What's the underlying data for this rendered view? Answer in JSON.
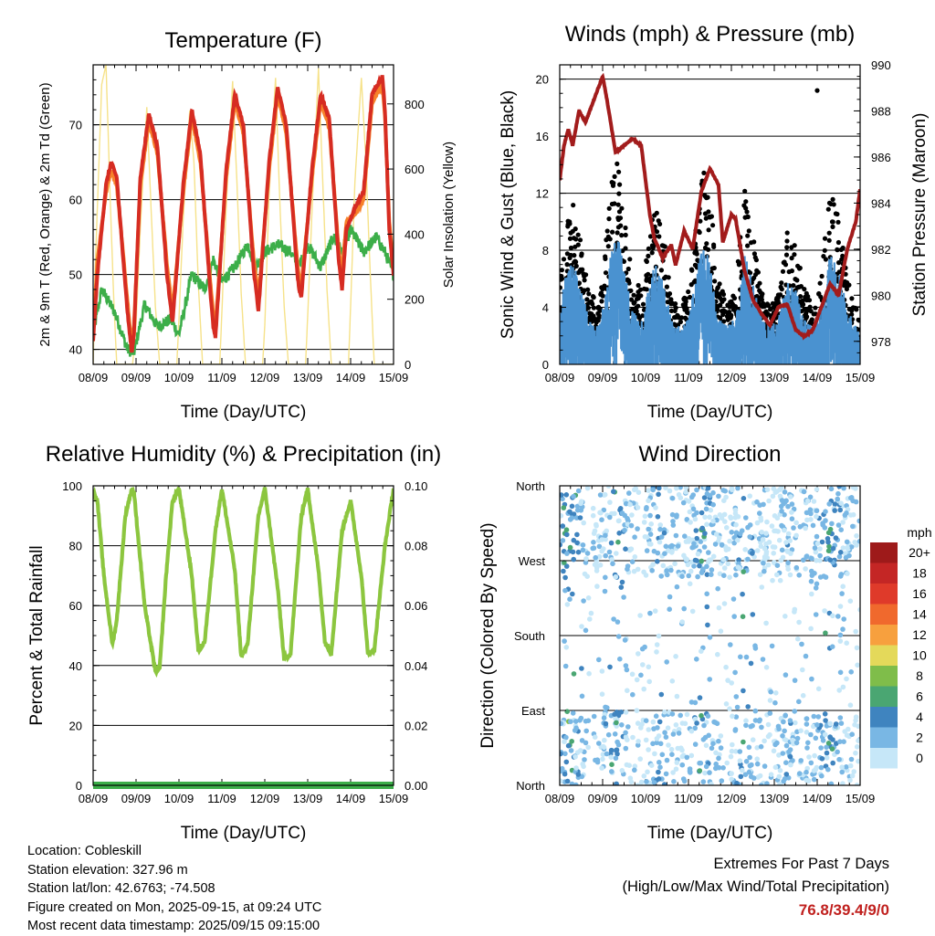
{
  "chart_data": [
    {
      "type": "line",
      "title": "Temperature (F)",
      "xlabel": "Time (Day/UTC)",
      "ylabel": "2m & 9m T (Red, Orange) & 2m Td (Green)",
      "y2label": "Solar Insolation (Yellow)",
      "x_ticks": [
        "08/09",
        "09/09",
        "10/09",
        "11/09",
        "12/09",
        "13/09",
        "14/09",
        "15/09"
      ],
      "ylim": [
        38,
        78
      ],
      "y_ticks": [
        40,
        50,
        60,
        70
      ],
      "y2lim": [
        0,
        920
      ],
      "y2_ticks": [
        0,
        200,
        400,
        600,
        800
      ],
      "grid_y": [
        40,
        50,
        60,
        70
      ],
      "series": [
        {
          "name": "2m T",
          "color": "#d62c22",
          "x": [
            0,
            0.1,
            0.3,
            0.42,
            0.55,
            0.8,
            0.9,
            0.95,
            1.1,
            1.3,
            1.5,
            1.72,
            1.8,
            1.85,
            2.1,
            2.3,
            2.5,
            2.74,
            2.8,
            2.85,
            3.1,
            3.3,
            3.5,
            3.75,
            3.8,
            3.85,
            4.1,
            4.3,
            4.5,
            4.76,
            4.8,
            4.85,
            5.1,
            5.3,
            5.5,
            5.72,
            5.8,
            5.9,
            6.1,
            6.3,
            6.5,
            6.74,
            6.8,
            6.9,
            7.0
          ],
          "values": [
            41,
            50,
            62,
            65,
            63,
            45,
            39.5,
            42,
            63,
            71.5,
            67,
            50,
            46,
            43.5,
            62,
            72,
            66,
            47,
            43,
            41.5,
            64,
            74,
            70,
            50,
            48,
            45,
            65,
            75,
            70,
            50,
            48,
            47,
            64,
            74,
            71,
            52,
            48,
            56,
            59,
            61,
            74,
            76.5,
            72,
            56,
            50
          ]
        },
        {
          "name": "9m T",
          "color": "#f7812a",
          "x": [
            0,
            0.1,
            0.3,
            0.42,
            0.55,
            0.8,
            0.9,
            0.95,
            1.1,
            1.3,
            1.5,
            1.72,
            1.8,
            1.85,
            2.1,
            2.3,
            2.5,
            2.74,
            2.8,
            2.85,
            3.1,
            3.3,
            3.5,
            3.75,
            3.8,
            3.85,
            4.1,
            4.3,
            4.5,
            4.76,
            4.8,
            4.85,
            5.1,
            5.3,
            5.5,
            5.72,
            5.8,
            5.9,
            6.1,
            6.3,
            6.5,
            6.74,
            6.8,
            6.9,
            7.0
          ],
          "values": [
            42,
            52,
            61,
            64,
            62,
            46.5,
            40.5,
            43,
            62,
            70.5,
            66,
            51.5,
            47.5,
            45,
            61,
            71,
            65,
            48.5,
            44.5,
            43,
            63,
            73,
            69,
            51.5,
            49.5,
            46.5,
            64,
            74,
            69,
            51.5,
            49.5,
            48.5,
            63,
            73,
            70,
            53.5,
            50,
            57,
            58,
            60,
            73,
            75.5,
            71,
            57,
            51
          ]
        },
        {
          "name": "2m Td",
          "color": "#3cae49",
          "x": [
            0,
            0.2,
            0.5,
            0.8,
            0.95,
            1.2,
            1.5,
            1.8,
            2.0,
            2.3,
            2.6,
            2.8,
            3.0,
            3.3,
            3.6,
            3.8,
            4.0,
            4.3,
            4.6,
            4.8,
            5.0,
            5.3,
            5.6,
            5.8,
            6.0,
            6.3,
            6.6,
            6.8,
            7.0
          ],
          "values": [
            42,
            48,
            45,
            40,
            39.5,
            46,
            43,
            44,
            42,
            50,
            48,
            52,
            49,
            51,
            54,
            51,
            53,
            54,
            53,
            51,
            54,
            51,
            55,
            53,
            56,
            53,
            55,
            53,
            50
          ]
        },
        {
          "name": "Solar Insolation",
          "axis": "y2",
          "color": "#f6e28a",
          "x": [
            0,
            0.05,
            0.2,
            0.3,
            0.4,
            0.48,
            0.55,
            0.92,
            1.0,
            1.1,
            1.25,
            1.35,
            1.45,
            1.55,
            1.95,
            2.0,
            2.1,
            2.25,
            2.35,
            2.45,
            2.55,
            2.95,
            3.0,
            3.1,
            3.25,
            3.35,
            3.45,
            3.55,
            3.95,
            4.0,
            4.1,
            4.25,
            4.35,
            4.45,
            4.55,
            4.95,
            5.0,
            5.1,
            5.25,
            5.35,
            5.45,
            5.55,
            5.95,
            6.0,
            6.1,
            6.25,
            6.35,
            6.45,
            6.55,
            7.0
          ],
          "values": [
            0,
            300,
            860,
            920,
            500,
            200,
            0,
            0,
            120,
            420,
            790,
            480,
            180,
            0,
            0,
            140,
            450,
            780,
            620,
            250,
            0,
            0,
            160,
            480,
            870,
            560,
            220,
            0,
            0,
            120,
            520,
            880,
            500,
            180,
            0,
            0,
            150,
            470,
            910,
            560,
            230,
            0,
            0,
            180,
            560,
            880,
            640,
            300,
            0,
            0
          ]
        }
      ]
    },
    {
      "type": "scatter",
      "title": "Winds (mph) & Pressure (mb)",
      "xlabel": "Time (Day/UTC)",
      "ylabel": "Sonic Wind & Gust (Blue, Black)",
      "y2label": "Station Pressure (Maroon)",
      "x_ticks": [
        "08/09",
        "09/09",
        "10/09",
        "11/09",
        "12/09",
        "13/09",
        "14/09",
        "15/09"
      ],
      "ylim": [
        0,
        21
      ],
      "y_ticks": [
        0,
        4,
        8,
        12,
        16,
        20
      ],
      "y2lim": [
        977,
        990
      ],
      "y2_ticks": [
        978,
        980,
        982,
        984,
        986,
        988,
        990
      ],
      "grid_y": [
        4,
        8,
        12,
        16,
        20
      ],
      "series": [
        {
          "name": "Sonic Wind",
          "color": "#4a92d0",
          "envelope": "sustained"
        },
        {
          "name": "Gust",
          "color": "#000000",
          "envelope": "gust"
        },
        {
          "name": "Station Pressure",
          "axis": "y2",
          "color": "#a21c1c",
          "x": [
            0,
            0.1,
            0.2,
            0.3,
            0.45,
            0.6,
            0.8,
            1.0,
            1.1,
            1.3,
            1.5,
            1.7,
            1.9,
            2.1,
            2.2,
            2.4,
            2.6,
            2.7,
            2.9,
            3.1,
            3.3,
            3.5,
            3.7,
            3.8,
            4.0,
            4.1,
            4.3,
            4.5,
            4.7,
            4.9,
            5.1,
            5.3,
            5.5,
            5.7,
            5.9,
            6.1,
            6.3,
            6.5,
            6.7,
            6.9,
            7.0
          ],
          "values": [
            985,
            986.5,
            987.2,
            986.5,
            988,
            987.5,
            988.5,
            989.5,
            988.5,
            986.2,
            986.5,
            986.8,
            986.5,
            983.5,
            982.5,
            981.6,
            982.2,
            981.3,
            982.8,
            982,
            984.5,
            985.5,
            984.8,
            982.3,
            983.5,
            983.3,
            981.1,
            979.8,
            979.2,
            978.7,
            979.5,
            979.6,
            978.5,
            978.2,
            978.5,
            979.5,
            980.5,
            980,
            982,
            983.2,
            984.6
          ]
        }
      ]
    },
    {
      "type": "line",
      "title": "Relative Humidity (%) & Precipitation (in)",
      "xlabel": "Time (Day/UTC)",
      "ylabel": "Percent & Total Rainfall",
      "x_ticks": [
        "08/09",
        "09/09",
        "10/09",
        "11/09",
        "12/09",
        "13/09",
        "14/09",
        "15/09"
      ],
      "ylim": [
        0,
        100
      ],
      "y_ticks": [
        0,
        20,
        40,
        60,
        80,
        100
      ],
      "y2lim": [
        0,
        0.1
      ],
      "y2_ticks": [
        "0.00",
        "0.02",
        "0.04",
        "0.06",
        "0.08",
        "0.10"
      ],
      "grid_y": [
        20,
        40,
        60,
        80
      ],
      "series": [
        {
          "name": "Relative Humidity",
          "color": "#8cc63f",
          "x": [
            0,
            0.1,
            0.25,
            0.45,
            0.55,
            0.75,
            0.9,
            0.95,
            1.2,
            1.45,
            1.55,
            1.7,
            1.85,
            2.0,
            2.3,
            2.45,
            2.6,
            2.85,
            3.0,
            3.3,
            3.45,
            3.6,
            3.85,
            4.0,
            4.3,
            4.45,
            4.6,
            4.85,
            5.0,
            5.25,
            5.4,
            5.55,
            5.8,
            6.0,
            6.25,
            6.4,
            6.55,
            6.8,
            7.0
          ],
          "values": [
            98,
            95,
            70,
            47,
            55,
            90,
            99,
            98,
            60,
            38,
            39,
            70,
            95,
            99,
            70,
            45,
            48,
            85,
            99,
            72,
            43,
            47,
            90,
            99,
            66,
            42,
            44,
            90,
            99,
            72,
            48,
            44,
            85,
            95,
            70,
            44,
            45,
            80,
            99
          ]
        },
        {
          "name": "Total Precipitation",
          "axis": "y2",
          "color": "#3cae49",
          "x": [
            0,
            7.0
          ],
          "values": [
            0,
            0
          ]
        }
      ]
    },
    {
      "type": "scatter",
      "title": "Wind Direction",
      "xlabel": "Time (Day/UTC)",
      "ylabel": "Direction (Colored By Speed)",
      "x_ticks": [
        "08/09",
        "09/09",
        "10/09",
        "11/09",
        "12/09",
        "13/09",
        "14/09",
        "15/09"
      ],
      "y_ticks": [
        "North",
        "East",
        "South",
        "West",
        "North"
      ],
      "ylim": [
        0,
        360
      ],
      "grid_y": [
        90,
        180,
        270
      ],
      "colorbar": {
        "title": "mph",
        "labels": [
          "20+",
          "18",
          "16",
          "14",
          "12",
          "10",
          "8",
          "6",
          "4",
          "2",
          "0"
        ],
        "colors": [
          "#9e1a1a",
          "#c42625",
          "#df3a2a",
          "#f0692d",
          "#f7a03e",
          "#e4d95a",
          "#7fbd4a",
          "#4aa672",
          "#3f84bf",
          "#79b7e4",
          "#c6e7f8"
        ]
      }
    }
  ],
  "footer": {
    "location": "Location: Cobleskill",
    "elevation": "Station elevation: 327.96 m",
    "latlon": "Station lat/lon: 42.6763; -74.508",
    "created": "Figure created on Mon, 2025-09-15, at 09:24 UTC",
    "recent": "Most recent data timestamp: 2025/09/15 09:15:00"
  },
  "extremes": {
    "line1": "Extremes For Past 7 Days",
    "line2": "(High/Low/Max Wind/Total Precipitation)",
    "value": "76.8/39.4/9/0"
  }
}
